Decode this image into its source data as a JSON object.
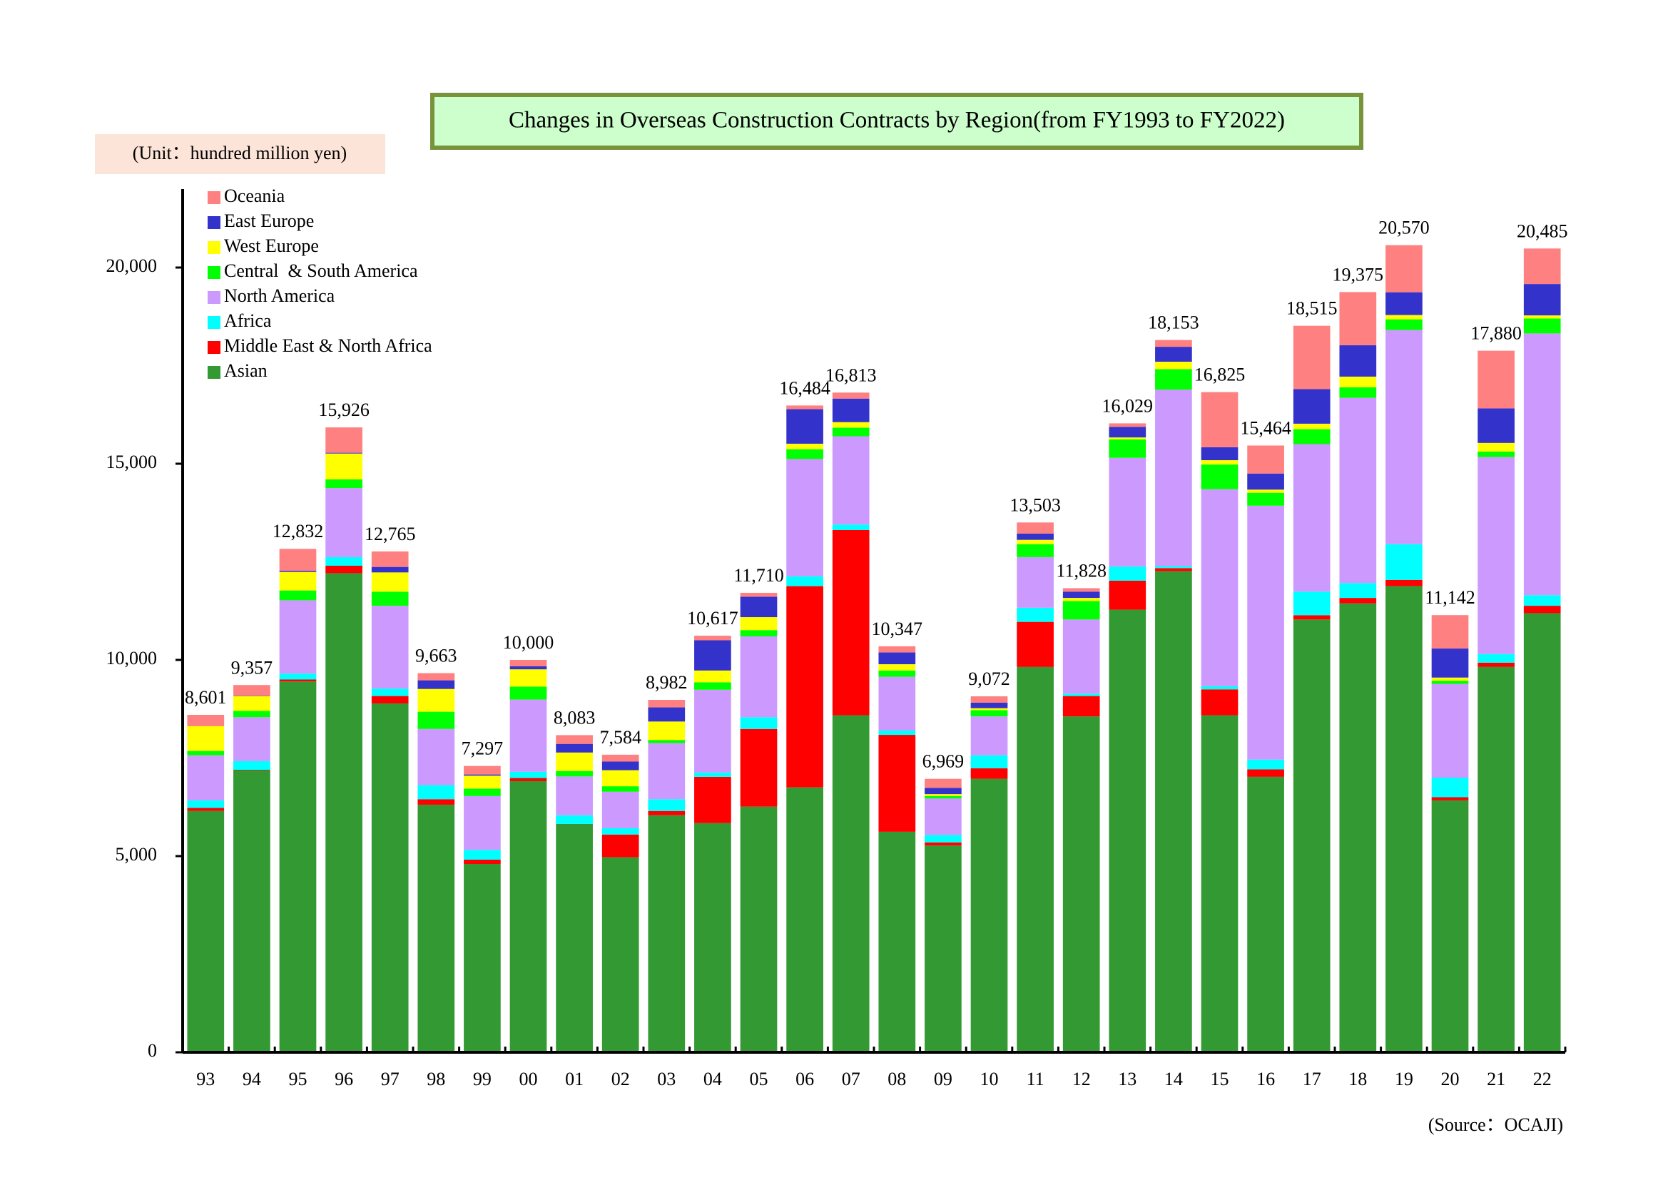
{
  "chart_data": {
    "type": "stacked_bar",
    "title": "Changes in Overseas Construction Contracts by Region(from FY1993 to FY2022)",
    "unit_note": "(Unit：hundred million yen)",
    "source": "(Source：OCAJI)",
    "categories": [
      "93",
      "94",
      "95",
      "96",
      "97",
      "98",
      "99",
      "00",
      "01",
      "02",
      "03",
      "04",
      "05",
      "06",
      "07",
      "08",
      "09",
      "10",
      "11",
      "12",
      "13",
      "14",
      "15",
      "16",
      "17",
      "18",
      "19",
      "20",
      "21",
      "22"
    ],
    "series": [
      {
        "name": "Asian",
        "color": "#339933",
        "values": [
          6150,
          7190,
          9450,
          12210,
          8890,
          6310,
          4800,
          6910,
          5820,
          4970,
          6040,
          5840,
          6260,
          6750,
          8590,
          5620,
          5270,
          6970,
          9820,
          8560,
          11280,
          12260,
          8590,
          7020,
          11030,
          11440,
          11880,
          6420,
          9820,
          11190
        ]
      },
      {
        "name": "Middle East & North Africa",
        "color": "#ff0000",
        "values": [
          80,
          10,
          50,
          190,
          190,
          140,
          110,
          80,
          0,
          580,
          110,
          1180,
          1980,
          5130,
          4720,
          2470,
          80,
          270,
          1150,
          520,
          740,
          80,
          660,
          190,
          110,
          140,
          160,
          80,
          110,
          190
        ]
      },
      {
        "name": "Africa",
        "color": "#00ffff",
        "values": [
          190,
          220,
          150,
          220,
          190,
          360,
          250,
          160,
          220,
          160,
          300,
          110,
          300,
          250,
          140,
          110,
          190,
          330,
          360,
          60,
          360,
          50,
          80,
          250,
          600,
          380,
          910,
          500,
          220,
          270
        ]
      },
      {
        "name": "North America",
        "color": "#cc99ff",
        "values": [
          1150,
          1120,
          1870,
          1760,
          2110,
          1430,
          1370,
          1840,
          990,
          930,
          1430,
          2110,
          2060,
          2990,
          2250,
          1370,
          930,
          990,
          1290,
          1890,
          2770,
          4500,
          5020,
          6470,
          3760,
          4720,
          5460,
          2390,
          5020,
          6670
        ]
      },
      {
        "name": "Central  & South America",
        "color": "#00ff00",
        "values": [
          110,
          160,
          250,
          220,
          360,
          440,
          190,
          330,
          140,
          140,
          80,
          190,
          160,
          250,
          220,
          160,
          60,
          160,
          330,
          470,
          470,
          520,
          630,
          330,
          380,
          270,
          270,
          80,
          140,
          380
        ]
      },
      {
        "name": "West Europe",
        "color": "#ffff00",
        "values": [
          630,
          380,
          470,
          660,
          490,
          580,
          330,
          440,
          470,
          410,
          470,
          300,
          330,
          140,
          140,
          160,
          50,
          50,
          110,
          80,
          50,
          190,
          110,
          80,
          140,
          270,
          110,
          80,
          220,
          80
        ]
      },
      {
        "name": "East Europe",
        "color": "#3333cc",
        "values": [
          0,
          10,
          30,
          20,
          140,
          220,
          30,
          80,
          220,
          220,
          360,
          770,
          520,
          880,
          600,
          300,
          160,
          140,
          160,
          160,
          270,
          380,
          330,
          410,
          880,
          800,
          580,
          740,
          880,
          800
        ]
      },
      {
        "name": "Oceania",
        "color": "#ff8080",
        "values": [
          290,
          270,
          560,
          646,
          395,
          183,
          217,
          160,
          223,
          174,
          192,
          117,
          100,
          94,
          153,
          157,
          229,
          162,
          283,
          88,
          89,
          173,
          1405,
          714,
          1615,
          1355,
          1200,
          852,
          1470,
          905
        ]
      }
    ],
    "totals": [
      8601,
      9357,
      12832,
      15926,
      12765,
      9663,
      7297,
      10000,
      8083,
      7584,
      8982,
      10617,
      11710,
      16484,
      16813,
      10347,
      6969,
      9072,
      13503,
      11828,
      16029,
      18153,
      16825,
      15464,
      18515,
      19375,
      20570,
      11142,
      17880,
      20485
    ],
    "total_labels": [
      "8,601",
      "9,357",
      "12,832",
      "15,926",
      "12,765",
      "9,663",
      "7,297",
      "10,000",
      "8,083",
      "7,584",
      "8,982",
      "10,617",
      "11,710",
      "16,484",
      "16,813",
      "10,347",
      "6,969",
      "9,072",
      "13,503",
      "11,828",
      "16,029",
      "18,153",
      "16,825",
      "15,464",
      "18,515",
      "19,375",
      "20,570",
      "11,142",
      "17,880",
      "20,485"
    ],
    "ylim": [
      0,
      22000
    ],
    "yticks": [
      0,
      {
        "value": 5000,
        "label": "5,000"
      },
      {
        "value": 10000,
        "label": "10,000"
      },
      {
        "value": 15000,
        "label": "15,000"
      },
      {
        "value": 20000,
        "label": "20,000"
      }
    ],
    "legend": "upper left"
  }
}
